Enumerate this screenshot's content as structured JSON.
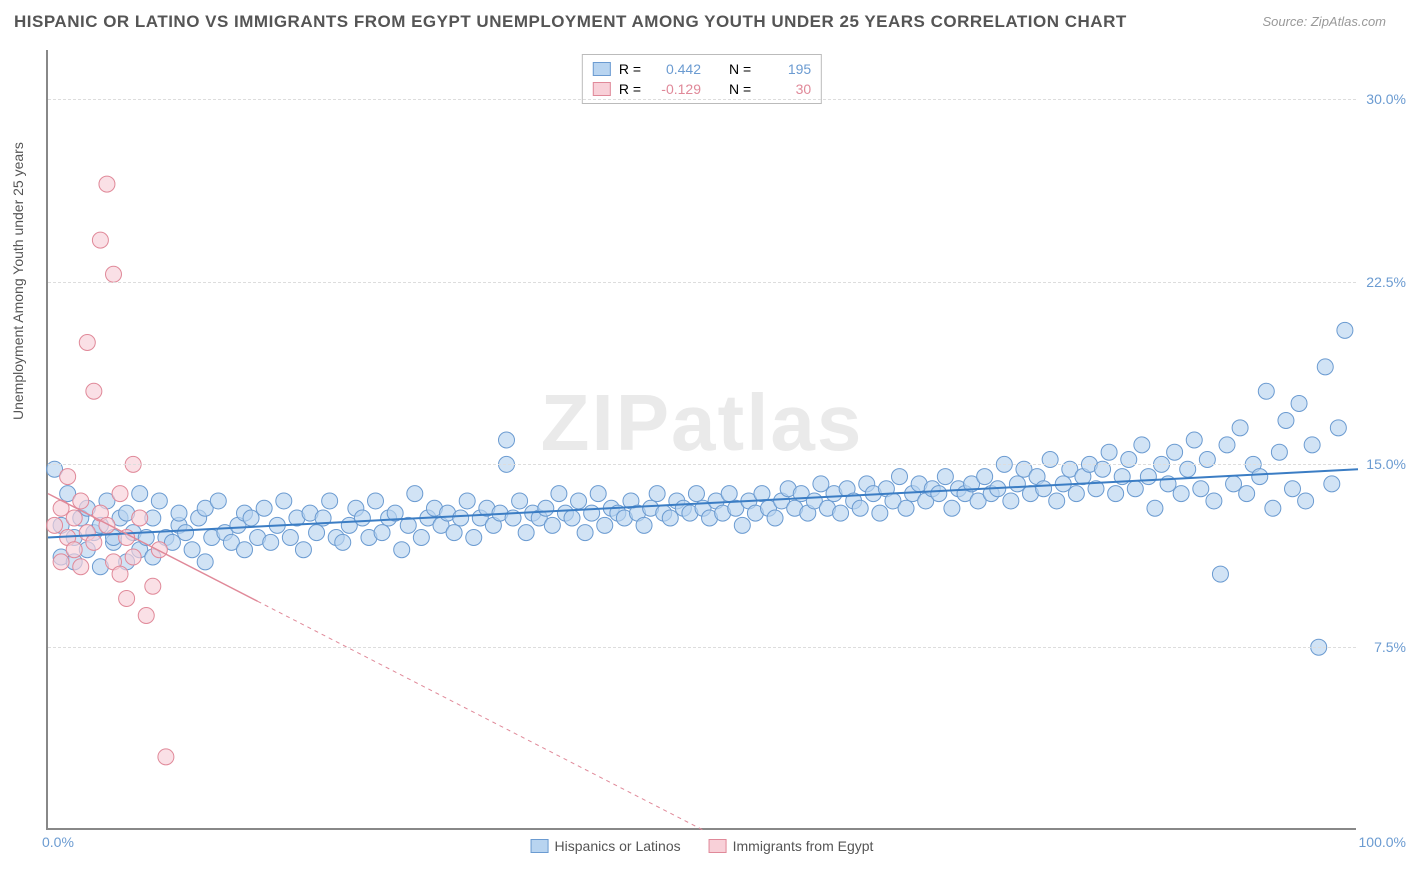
{
  "title": "HISPANIC OR LATINO VS IMMIGRANTS FROM EGYPT UNEMPLOYMENT AMONG YOUTH UNDER 25 YEARS CORRELATION CHART",
  "source": "Source: ZipAtlas.com",
  "watermark": "ZIPatlas",
  "ylabel": "Unemployment Among Youth under 25 years",
  "axes": {
    "xlim": [
      0,
      100
    ],
    "ylim": [
      0,
      32
    ],
    "yticks": [
      7.5,
      15.0,
      22.5,
      30.0
    ],
    "ytick_labels": [
      "7.5%",
      "15.0%",
      "22.5%",
      "30.0%"
    ],
    "xticks": [
      0,
      100
    ],
    "xtick_labels": [
      "0.0%",
      "100.0%"
    ],
    "grid_color": "#dddddd",
    "axis_color": "#888888"
  },
  "series": [
    {
      "name": "Hispanics or Latinos",
      "color_fill": "#b8d4f0",
      "color_stroke": "#6b9bd1",
      "r_value": "0.442",
      "n_value": "195",
      "marker_radius": 8,
      "marker_opacity": 0.65,
      "trend": {
        "x1": 0,
        "y1": 12.0,
        "x2": 100,
        "y2": 14.8,
        "width": 2,
        "dash": "none",
        "color": "#3b7dc4"
      },
      "points": [
        [
          0.5,
          14.8
        ],
        [
          1,
          12.5
        ],
        [
          1,
          11.2
        ],
        [
          1.5,
          13.8
        ],
        [
          2,
          12.0
        ],
        [
          2,
          11.0
        ],
        [
          2.5,
          12.8
        ],
        [
          3,
          11.5
        ],
        [
          3,
          13.2
        ],
        [
          3.5,
          12.2
        ],
        [
          4,
          10.8
        ],
        [
          4,
          12.5
        ],
        [
          4.5,
          13.5
        ],
        [
          5,
          11.8
        ],
        [
          5,
          12.0
        ],
        [
          5.5,
          12.8
        ],
        [
          6,
          11.0
        ],
        [
          6,
          13.0
        ],
        [
          6.5,
          12.2
        ],
        [
          7,
          11.5
        ],
        [
          7,
          13.8
        ],
        [
          7.5,
          12.0
        ],
        [
          8,
          11.2
        ],
        [
          8,
          12.8
        ],
        [
          8.5,
          13.5
        ],
        [
          9,
          12.0
        ],
        [
          9.5,
          11.8
        ],
        [
          10,
          12.5
        ],
        [
          10,
          13.0
        ],
        [
          10.5,
          12.2
        ],
        [
          11,
          11.5
        ],
        [
          11.5,
          12.8
        ],
        [
          12,
          13.2
        ],
        [
          12,
          11.0
        ],
        [
          12.5,
          12.0
        ],
        [
          13,
          13.5
        ],
        [
          13.5,
          12.2
        ],
        [
          14,
          11.8
        ],
        [
          14.5,
          12.5
        ],
        [
          15,
          13.0
        ],
        [
          15,
          11.5
        ],
        [
          15.5,
          12.8
        ],
        [
          16,
          12.0
        ],
        [
          16.5,
          13.2
        ],
        [
          17,
          11.8
        ],
        [
          17.5,
          12.5
        ],
        [
          18,
          13.5
        ],
        [
          18.5,
          12.0
        ],
        [
          19,
          12.8
        ],
        [
          19.5,
          11.5
        ],
        [
          20,
          13.0
        ],
        [
          20.5,
          12.2
        ],
        [
          21,
          12.8
        ],
        [
          21.5,
          13.5
        ],
        [
          22,
          12.0
        ],
        [
          22.5,
          11.8
        ],
        [
          23,
          12.5
        ],
        [
          23.5,
          13.2
        ],
        [
          24,
          12.8
        ],
        [
          24.5,
          12.0
        ],
        [
          25,
          13.5
        ],
        [
          25.5,
          12.2
        ],
        [
          26,
          12.8
        ],
        [
          26.5,
          13.0
        ],
        [
          27,
          11.5
        ],
        [
          27.5,
          12.5
        ],
        [
          28,
          13.8
        ],
        [
          28.5,
          12.0
        ],
        [
          29,
          12.8
        ],
        [
          29.5,
          13.2
        ],
        [
          30,
          12.5
        ],
        [
          30.5,
          13.0
        ],
        [
          31,
          12.2
        ],
        [
          31.5,
          12.8
        ],
        [
          32,
          13.5
        ],
        [
          32.5,
          12.0
        ],
        [
          33,
          12.8
        ],
        [
          33.5,
          13.2
        ],
        [
          34,
          12.5
        ],
        [
          34.5,
          13.0
        ],
        [
          35,
          16.0
        ],
        [
          35,
          15.0
        ],
        [
          35.5,
          12.8
        ],
        [
          36,
          13.5
        ],
        [
          36.5,
          12.2
        ],
        [
          37,
          13.0
        ],
        [
          37.5,
          12.8
        ],
        [
          38,
          13.2
        ],
        [
          38.5,
          12.5
        ],
        [
          39,
          13.8
        ],
        [
          39.5,
          13.0
        ],
        [
          40,
          12.8
        ],
        [
          40.5,
          13.5
        ],
        [
          41,
          12.2
        ],
        [
          41.5,
          13.0
        ],
        [
          42,
          13.8
        ],
        [
          42.5,
          12.5
        ],
        [
          43,
          13.2
        ],
        [
          43.5,
          13.0
        ],
        [
          44,
          12.8
        ],
        [
          44.5,
          13.5
        ],
        [
          45,
          13.0
        ],
        [
          45.5,
          12.5
        ],
        [
          46,
          13.2
        ],
        [
          46.5,
          13.8
        ],
        [
          47,
          13.0
        ],
        [
          47.5,
          12.8
        ],
        [
          48,
          13.5
        ],
        [
          48.5,
          13.2
        ],
        [
          49,
          13.0
        ],
        [
          49.5,
          13.8
        ],
        [
          50,
          13.2
        ],
        [
          50.5,
          12.8
        ],
        [
          51,
          13.5
        ],
        [
          51.5,
          13.0
        ],
        [
          52,
          13.8
        ],
        [
          52.5,
          13.2
        ],
        [
          53,
          12.5
        ],
        [
          53.5,
          13.5
        ],
        [
          54,
          13.0
        ],
        [
          54.5,
          13.8
        ],
        [
          55,
          13.2
        ],
        [
          55.5,
          12.8
        ],
        [
          56,
          13.5
        ],
        [
          56.5,
          14.0
        ],
        [
          57,
          13.2
        ],
        [
          57.5,
          13.8
        ],
        [
          58,
          13.0
        ],
        [
          58.5,
          13.5
        ],
        [
          59,
          14.2
        ],
        [
          59.5,
          13.2
        ],
        [
          60,
          13.8
        ],
        [
          60.5,
          13.0
        ],
        [
          61,
          14.0
        ],
        [
          61.5,
          13.5
        ],
        [
          62,
          13.2
        ],
        [
          62.5,
          14.2
        ],
        [
          63,
          13.8
        ],
        [
          63.5,
          13.0
        ],
        [
          64,
          14.0
        ],
        [
          64.5,
          13.5
        ],
        [
          65,
          14.5
        ],
        [
          65.5,
          13.2
        ],
        [
          66,
          13.8
        ],
        [
          66.5,
          14.2
        ],
        [
          67,
          13.5
        ],
        [
          67.5,
          14.0
        ],
        [
          68,
          13.8
        ],
        [
          68.5,
          14.5
        ],
        [
          69,
          13.2
        ],
        [
          69.5,
          14.0
        ],
        [
          70,
          13.8
        ],
        [
          70.5,
          14.2
        ],
        [
          71,
          13.5
        ],
        [
          71.5,
          14.5
        ],
        [
          72,
          13.8
        ],
        [
          72.5,
          14.0
        ],
        [
          73,
          15.0
        ],
        [
          73.5,
          13.5
        ],
        [
          74,
          14.2
        ],
        [
          74.5,
          14.8
        ],
        [
          75,
          13.8
        ],
        [
          75.5,
          14.5
        ],
        [
          76,
          14.0
        ],
        [
          76.5,
          15.2
        ],
        [
          77,
          13.5
        ],
        [
          77.5,
          14.2
        ],
        [
          78,
          14.8
        ],
        [
          78.5,
          13.8
        ],
        [
          79,
          14.5
        ],
        [
          79.5,
          15.0
        ],
        [
          80,
          14.0
        ],
        [
          80.5,
          14.8
        ],
        [
          81,
          15.5
        ],
        [
          81.5,
          13.8
        ],
        [
          82,
          14.5
        ],
        [
          82.5,
          15.2
        ],
        [
          83,
          14.0
        ],
        [
          83.5,
          15.8
        ],
        [
          84,
          14.5
        ],
        [
          84.5,
          13.2
        ],
        [
          85,
          15.0
        ],
        [
          85.5,
          14.2
        ],
        [
          86,
          15.5
        ],
        [
          86.5,
          13.8
        ],
        [
          87,
          14.8
        ],
        [
          87.5,
          16.0
        ],
        [
          88,
          14.0
        ],
        [
          88.5,
          15.2
        ],
        [
          89,
          13.5
        ],
        [
          89.5,
          10.5
        ],
        [
          90,
          15.8
        ],
        [
          90.5,
          14.2
        ],
        [
          91,
          16.5
        ],
        [
          91.5,
          13.8
        ],
        [
          92,
          15.0
        ],
        [
          92.5,
          14.5
        ],
        [
          93,
          18.0
        ],
        [
          93.5,
          13.2
        ],
        [
          94,
          15.5
        ],
        [
          94.5,
          16.8
        ],
        [
          95,
          14.0
        ],
        [
          95.5,
          17.5
        ],
        [
          96,
          13.5
        ],
        [
          96.5,
          15.8
        ],
        [
          97,
          7.5
        ],
        [
          97.5,
          19.0
        ],
        [
          98,
          14.2
        ],
        [
          98.5,
          16.5
        ],
        [
          99,
          20.5
        ]
      ]
    },
    {
      "name": "Immigrants from Egypt",
      "color_fill": "#f8d0d8",
      "color_stroke": "#e08999",
      "r_value": "-0.129",
      "n_value": "30",
      "marker_radius": 8,
      "marker_opacity": 0.65,
      "trend": {
        "x1": 0,
        "y1": 13.8,
        "x2": 50,
        "y2": 0,
        "width": 1.5,
        "dash": "4,4",
        "color": "#e08999",
        "solid_until_x": 16
      },
      "points": [
        [
          0.5,
          12.5
        ],
        [
          1,
          11.0
        ],
        [
          1,
          13.2
        ],
        [
          1.5,
          12.0
        ],
        [
          1.5,
          14.5
        ],
        [
          2,
          11.5
        ],
        [
          2,
          12.8
        ],
        [
          2.5,
          13.5
        ],
        [
          2.5,
          10.8
        ],
        [
          3,
          12.2
        ],
        [
          3,
          20.0
        ],
        [
          3.5,
          18.0
        ],
        [
          3.5,
          11.8
        ],
        [
          4,
          13.0
        ],
        [
          4,
          24.2
        ],
        [
          4.5,
          26.5
        ],
        [
          4.5,
          12.5
        ],
        [
          5,
          11.0
        ],
        [
          5,
          22.8
        ],
        [
          5.5,
          13.8
        ],
        [
          5.5,
          10.5
        ],
        [
          6,
          12.0
        ],
        [
          6,
          9.5
        ],
        [
          6.5,
          15.0
        ],
        [
          6.5,
          11.2
        ],
        [
          7,
          12.8
        ],
        [
          7.5,
          8.8
        ],
        [
          8,
          10.0
        ],
        [
          8.5,
          11.5
        ],
        [
          9,
          3.0
        ]
      ]
    }
  ],
  "legend_labels": {
    "r_prefix": "R =",
    "n_prefix": "N ="
  }
}
